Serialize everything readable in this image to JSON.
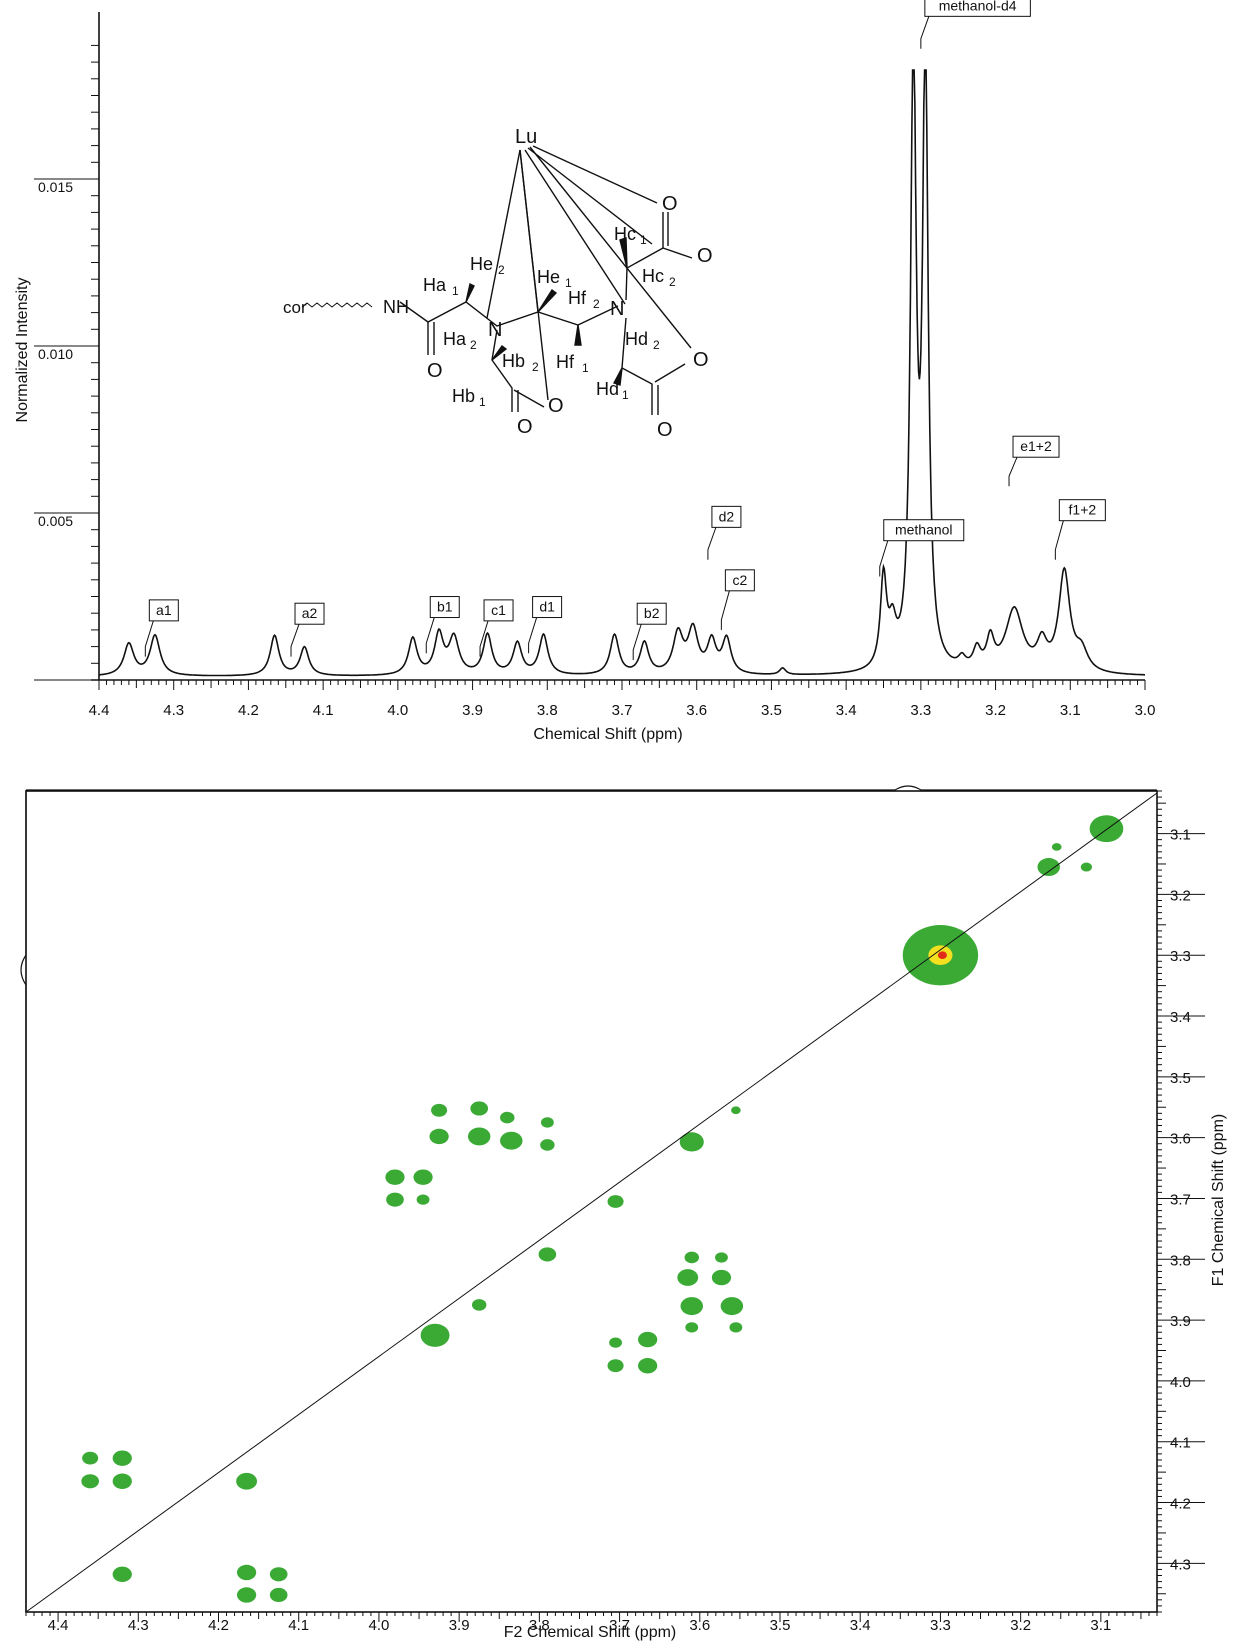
{
  "chart_data": [
    {
      "type": "line",
      "xlabel": "Chemical Shift (ppm)",
      "ylabel": "Normalized Intensity",
      "x_ticks": [
        "4.4",
        "4.3",
        "4.2",
        "4.1",
        "4.0",
        "3.9",
        "3.8",
        "3.7",
        "3.6",
        "3.5",
        "3.4",
        "3.3",
        "3.2",
        "3.1",
        "3.0"
      ],
      "y_ticks": [
        "0.005",
        "0.010",
        "0.015"
      ],
      "xlim": [
        4.4,
        3.0
      ],
      "ylim": [
        0,
        0.02
      ],
      "peaks": [
        {
          "x": 4.36,
          "y": 0.00095,
          "w": 0.008
        },
        {
          "x": 4.325,
          "y": 0.0012,
          "w": 0.008
        },
        {
          "x": 4.165,
          "y": 0.0012,
          "w": 0.007
        },
        {
          "x": 4.125,
          "y": 0.00085,
          "w": 0.007
        },
        {
          "x": 3.98,
          "y": 0.0011,
          "w": 0.007
        },
        {
          "x": 3.945,
          "y": 0.0012,
          "w": 0.007
        },
        {
          "x": 3.925,
          "y": 0.0011,
          "w": 0.008
        },
        {
          "x": 3.88,
          "y": 0.0012,
          "w": 0.007
        },
        {
          "x": 3.84,
          "y": 0.00095,
          "w": 0.007
        },
        {
          "x": 3.805,
          "y": 0.0012,
          "w": 0.007
        },
        {
          "x": 3.71,
          "y": 0.0012,
          "w": 0.007
        },
        {
          "x": 3.67,
          "y": 0.00095,
          "w": 0.007
        },
        {
          "x": 3.625,
          "y": 0.0012,
          "w": 0.008
        },
        {
          "x": 3.605,
          "y": 0.0013,
          "w": 0.008
        },
        {
          "x": 3.58,
          "y": 0.00095,
          "w": 0.007
        },
        {
          "x": 3.56,
          "y": 0.00105,
          "w": 0.007
        },
        {
          "x": 3.485,
          "y": 0.0002,
          "w": 0.005
        },
        {
          "x": 3.35,
          "y": 0.0027,
          "w": 0.005
        },
        {
          "x": 3.338,
          "y": 0.0011,
          "w": 0.006
        },
        {
          "x": 3.31,
          "y": 0.0183,
          "w": 0.0045
        },
        {
          "x": 3.294,
          "y": 0.0183,
          "w": 0.0045
        },
        {
          "x": 3.245,
          "y": 0.0003,
          "w": 0.006
        },
        {
          "x": 3.225,
          "y": 0.0006,
          "w": 0.006
        },
        {
          "x": 3.207,
          "y": 0.0009,
          "w": 0.006
        },
        {
          "x": 3.175,
          "y": 0.0019,
          "w": 0.014
        },
        {
          "x": 3.138,
          "y": 0.0008,
          "w": 0.008
        },
        {
          "x": 3.108,
          "y": 0.003,
          "w": 0.009
        },
        {
          "x": 3.085,
          "y": 0.0006,
          "w": 0.01
        }
      ],
      "peak_labels": [
        {
          "text": "a1",
          "x": 4.338,
          "tip": 0.0007,
          "box": 0.0018
        },
        {
          "text": "a2",
          "x": 4.143,
          "tip": 0.0007,
          "box": 0.0017
        },
        {
          "text": "b1",
          "x": 3.962,
          "tip": 0.0008,
          "box": 0.0019
        },
        {
          "text": "c1",
          "x": 3.89,
          "tip": 0.0007,
          "box": 0.0018
        },
        {
          "text": "d1",
          "x": 3.825,
          "tip": 0.0008,
          "box": 0.0019
        },
        {
          "text": "b2",
          "x": 3.685,
          "tip": 0.0006,
          "box": 0.0017
        },
        {
          "text": "d2",
          "x": 3.585,
          "tip": 0.0036,
          "box": 0.0046
        },
        {
          "text": "c2",
          "x": 3.567,
          "tip": 0.0015,
          "box": 0.0027
        },
        {
          "text": "methanol",
          "x": 3.355,
          "tip": 0.0031,
          "box": 0.0042
        },
        {
          "text": "methanol-d4",
          "x": 3.3,
          "tip": 0.0189,
          "box": 0.0199
        },
        {
          "text": "e1+2",
          "x": 3.182,
          "tip": 0.0058,
          "box": 0.0067
        },
        {
          "text": "f1+2",
          "x": 3.12,
          "tip": 0.0036,
          "box": 0.0048
        }
      ]
    },
    {
      "type": "heatmap",
      "xlabel": "F2 Chemical Shift (ppm)",
      "ylabel": "F1 Chemical Shift (ppm)",
      "x_ticks": [
        "4.4",
        "4.3",
        "4.2",
        "4.1",
        "4.0",
        "3.9",
        "3.8",
        "3.7",
        "3.6",
        "3.5",
        "3.4",
        "3.3",
        "3.2",
        "3.1"
      ],
      "y_ticks": [
        "3.1",
        "3.2",
        "3.3",
        "3.4",
        "3.5",
        "3.6",
        "3.7",
        "3.8",
        "3.9",
        "4.0",
        "4.1",
        "4.2",
        "4.3"
      ],
      "xlim": [
        4.44,
        3.03
      ],
      "ylim": [
        3.03,
        4.38
      ],
      "diagonal_peaks": [
        {
          "x": 3.093,
          "y": 3.092,
          "r": 0.021
        },
        {
          "x": 3.165,
          "y": 3.155,
          "r": 0.014
        },
        {
          "x": 3.3,
          "y": 3.3,
          "r": 0.047,
          "intense": true
        },
        {
          "x": 3.555,
          "y": 3.555,
          "r": 0.006
        },
        {
          "x": 3.61,
          "y": 3.607,
          "r": 0.015
        },
        {
          "x": 3.705,
          "y": 3.705,
          "r": 0.01
        },
        {
          "x": 3.79,
          "y": 3.792,
          "r": 0.011
        },
        {
          "x": 3.875,
          "y": 3.875,
          "r": 0.009
        },
        {
          "x": 3.93,
          "y": 3.925,
          "r": 0.018
        },
        {
          "x": 4.165,
          "y": 4.165,
          "r": 0.013
        },
        {
          "x": 4.32,
          "y": 4.318,
          "r": 0.012
        }
      ],
      "cross_peaks": [
        {
          "x": 3.155,
          "y": 3.122,
          "r": 0.006
        },
        {
          "x": 3.118,
          "y": 3.155,
          "r": 0.007
        },
        {
          "x": 3.925,
          "y": 3.555,
          "r": 0.01
        },
        {
          "x": 3.875,
          "y": 3.552,
          "r": 0.011
        },
        {
          "x": 3.84,
          "y": 3.567,
          "r": 0.009
        },
        {
          "x": 3.79,
          "y": 3.575,
          "r": 0.008
        },
        {
          "x": 3.925,
          "y": 3.598,
          "r": 0.012
        },
        {
          "x": 3.875,
          "y": 3.598,
          "r": 0.014
        },
        {
          "x": 3.835,
          "y": 3.605,
          "r": 0.014
        },
        {
          "x": 3.79,
          "y": 3.612,
          "r": 0.009
        },
        {
          "x": 3.98,
          "y": 3.665,
          "r": 0.012
        },
        {
          "x": 3.945,
          "y": 3.665,
          "r": 0.012
        },
        {
          "x": 3.98,
          "y": 3.702,
          "r": 0.011
        },
        {
          "x": 3.945,
          "y": 3.702,
          "r": 0.008
        },
        {
          "x": 3.61,
          "y": 3.797,
          "r": 0.009
        },
        {
          "x": 3.573,
          "y": 3.797,
          "r": 0.008
        },
        {
          "x": 3.615,
          "y": 3.83,
          "r": 0.013
        },
        {
          "x": 3.573,
          "y": 3.83,
          "r": 0.012
        },
        {
          "x": 3.61,
          "y": 3.877,
          "r": 0.014
        },
        {
          "x": 3.56,
          "y": 3.877,
          "r": 0.014
        },
        {
          "x": 3.61,
          "y": 3.912,
          "r": 0.008
        },
        {
          "x": 3.555,
          "y": 3.912,
          "r": 0.008
        },
        {
          "x": 3.705,
          "y": 3.937,
          "r": 0.008
        },
        {
          "x": 3.665,
          "y": 3.932,
          "r": 0.012
        },
        {
          "x": 3.705,
          "y": 3.975,
          "r": 0.01
        },
        {
          "x": 3.665,
          "y": 3.975,
          "r": 0.012
        },
        {
          "x": 4.36,
          "y": 4.127,
          "r": 0.01
        },
        {
          "x": 4.32,
          "y": 4.127,
          "r": 0.012
        },
        {
          "x": 4.36,
          "y": 4.165,
          "r": 0.011
        },
        {
          "x": 4.32,
          "y": 4.165,
          "r": 0.012
        },
        {
          "x": 4.165,
          "y": 4.315,
          "r": 0.012
        },
        {
          "x": 4.125,
          "y": 4.318,
          "r": 0.011
        },
        {
          "x": 4.165,
          "y": 4.352,
          "r": 0.012
        },
        {
          "x": 4.125,
          "y": 4.352,
          "r": 0.011
        }
      ]
    }
  ],
  "structure": {
    "labels": [
      "Lu",
      "cor",
      "NH",
      "Ha",
      "1",
      "Ha",
      "2",
      "N",
      "He",
      "2",
      "He",
      "1",
      "Hf",
      "2",
      "N",
      "Hf",
      "1",
      "Hb",
      "2",
      "Hb",
      "1",
      "Hc",
      "1",
      "Hc",
      "2",
      "Hd",
      "2",
      "Hd",
      "1",
      "O",
      "O",
      "O",
      "O",
      "O",
      "O",
      "O"
    ]
  },
  "colors": {
    "peak_green": "#3aaa35",
    "peak_yellow": "#f5e020",
    "peak_red": "#e02a1a",
    "line": "#111111"
  }
}
